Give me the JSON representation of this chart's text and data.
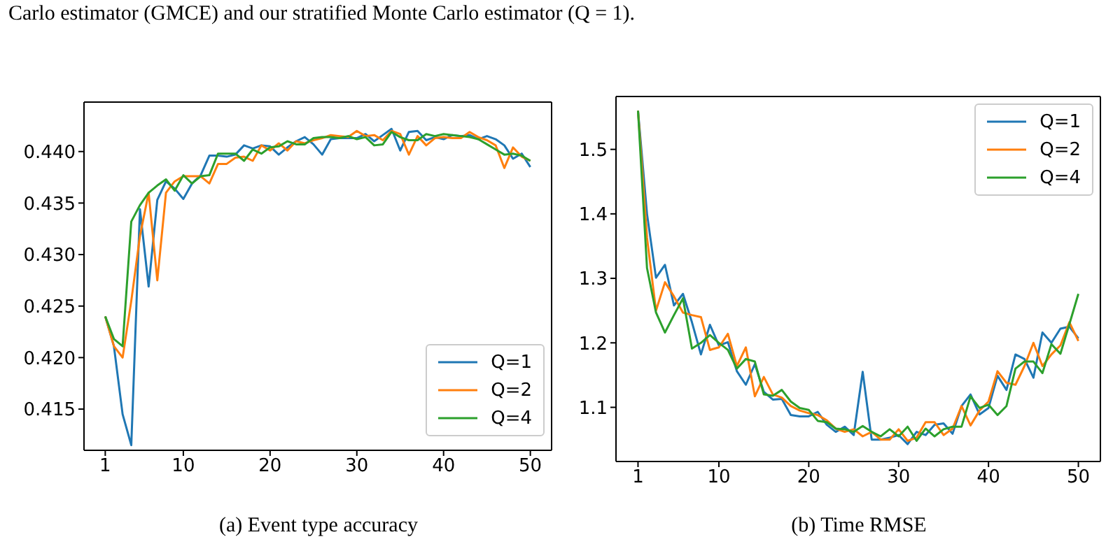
{
  "chart_data": [
    {
      "type": "line",
      "xlabel": "(a) Event type accuracy",
      "annotations": [
        "Carlo estimator (GMCE) and our stratified Monte Carlo estimator (Q = 1)."
      ],
      "x": [
        1,
        2,
        3,
        4,
        5,
        6,
        7,
        8,
        9,
        10,
        11,
        12,
        13,
        14,
        15,
        16,
        17,
        18,
        19,
        20,
        21,
        22,
        23,
        24,
        25,
        26,
        27,
        28,
        29,
        30,
        31,
        32,
        33,
        34,
        35,
        36,
        37,
        38,
        39,
        40,
        41,
        42,
        43,
        44,
        45,
        46,
        47,
        48,
        49,
        50
      ],
      "xlim": [
        -1.45,
        52.45
      ],
      "xticks": [
        1,
        10,
        20,
        30,
        40,
        50
      ],
      "ylim": [
        0.411,
        0.4448
      ],
      "yticks": [
        0.415,
        {
          "value": 0.42,
          "label": "0.420"
        },
        0.425,
        {
          "value": 0.43,
          "label": "0.430"
        },
        0.435,
        {
          "value": 0.44,
          "label": "0.440"
        }
      ],
      "grid": false,
      "legend": "bottom right",
      "marker": "none",
      "line_style": "solid",
      "series": [
        {
          "name": "Q=1",
          "color": "#1f77b4",
          "values": [
            0.424,
            0.4211,
            0.4145,
            0.4115,
            0.4344,
            0.4269,
            0.4353,
            0.4371,
            0.4364,
            0.4354,
            0.4369,
            0.4377,
            0.4396,
            0.4396,
            0.4395,
            0.4397,
            0.4406,
            0.4403,
            0.4406,
            0.4405,
            0.4397,
            0.4404,
            0.441,
            0.4414,
            0.4407,
            0.4397,
            0.4412,
            0.4413,
            0.4413,
            0.4413,
            0.4417,
            0.441,
            0.4416,
            0.4422,
            0.4401,
            0.4419,
            0.442,
            0.4411,
            0.4414,
            0.4412,
            0.4416,
            0.4415,
            0.4416,
            0.4412,
            0.4415,
            0.4412,
            0.4406,
            0.4393,
            0.4398,
            0.4385
          ]
        },
        {
          "name": "Q=2",
          "color": "#ff7f0e",
          "values": [
            0.424,
            0.4211,
            0.42,
            0.4255,
            0.4318,
            0.436,
            0.4275,
            0.436,
            0.4371,
            0.4376,
            0.4376,
            0.4376,
            0.4369,
            0.4388,
            0.4388,
            0.4394,
            0.4395,
            0.4391,
            0.4406,
            0.4401,
            0.4408,
            0.4401,
            0.441,
            0.4408,
            0.4411,
            0.4413,
            0.4416,
            0.4415,
            0.4414,
            0.442,
            0.4415,
            0.4416,
            0.4411,
            0.442,
            0.4417,
            0.4397,
            0.4415,
            0.4406,
            0.4413,
            0.4414,
            0.4413,
            0.4413,
            0.4419,
            0.4414,
            0.4411,
            0.4406,
            0.4384,
            0.4404,
            0.4395,
            0.4391
          ]
        },
        {
          "name": "Q=4",
          "color": "#2ca02c",
          "values": [
            0.424,
            0.4218,
            0.4211,
            0.4332,
            0.4348,
            0.436,
            0.4367,
            0.4373,
            0.4362,
            0.4377,
            0.4369,
            0.4376,
            0.4377,
            0.4398,
            0.4398,
            0.4398,
            0.4391,
            0.4402,
            0.4398,
            0.4404,
            0.4405,
            0.441,
            0.4407,
            0.4407,
            0.4413,
            0.4414,
            0.4414,
            0.4413,
            0.4415,
            0.4412,
            0.4414,
            0.4406,
            0.4407,
            0.4419,
            0.4414,
            0.4411,
            0.4411,
            0.4417,
            0.4415,
            0.4417,
            0.4416,
            0.4415,
            0.4414,
            0.4412,
            0.4407,
            0.4402,
            0.4397,
            0.4398,
            0.4396,
            0.4391
          ]
        }
      ]
    },
    {
      "type": "line",
      "xlabel": "(b) Time RMSE",
      "x": [
        1,
        2,
        3,
        4,
        5,
        6,
        7,
        8,
        9,
        10,
        11,
        12,
        13,
        14,
        15,
        16,
        17,
        18,
        19,
        20,
        21,
        22,
        23,
        24,
        25,
        26,
        27,
        28,
        29,
        30,
        31,
        32,
        33,
        34,
        35,
        36,
        37,
        38,
        39,
        40,
        41,
        42,
        43,
        44,
        45,
        46,
        47,
        48,
        49,
        50
      ],
      "xlim": [
        -1.45,
        52.45
      ],
      "xticks": [
        1,
        10,
        20,
        30,
        40,
        50
      ],
      "ylim": [
        1.016,
        1.582
      ],
      "yticks": [
        1.1,
        1.2,
        1.3,
        1.4,
        1.5
      ],
      "grid": false,
      "legend": "top right",
      "marker": "none",
      "line_style": "solid",
      "series": [
        {
          "name": "Q=1",
          "color": "#1f77b4",
          "values": [
            1.56,
            1.4,
            1.301,
            1.321,
            1.258,
            1.276,
            1.232,
            1.182,
            1.228,
            1.196,
            1.201,
            1.156,
            1.135,
            1.167,
            1.124,
            1.112,
            1.113,
            1.088,
            1.086,
            1.086,
            1.093,
            1.073,
            1.062,
            1.07,
            1.057,
            1.155,
            1.05,
            1.05,
            1.053,
            1.057,
            1.043,
            1.062,
            1.057,
            1.073,
            1.075,
            1.059,
            1.102,
            1.12,
            1.089,
            1.099,
            1.149,
            1.127,
            1.182,
            1.175,
            1.146,
            1.216,
            1.2,
            1.222,
            1.225,
            1.207
          ]
        },
        {
          "name": "Q=2",
          "color": "#ff7f0e",
          "values": [
            1.56,
            1.363,
            1.25,
            1.294,
            1.272,
            1.247,
            1.243,
            1.24,
            1.189,
            1.193,
            1.214,
            1.164,
            1.193,
            1.117,
            1.147,
            1.12,
            1.115,
            1.102,
            1.095,
            1.091,
            1.088,
            1.08,
            1.067,
            1.062,
            1.066,
            1.055,
            1.062,
            1.05,
            1.05,
            1.066,
            1.048,
            1.053,
            1.077,
            1.077,
            1.057,
            1.067,
            1.102,
            1.072,
            1.095,
            1.109,
            1.156,
            1.138,
            1.135,
            1.164,
            1.2,
            1.164,
            1.182,
            1.196,
            1.232,
            1.203
          ]
        },
        {
          "name": "Q=4",
          "color": "#2ca02c",
          "values": [
            1.56,
            1.316,
            1.247,
            1.216,
            1.243,
            1.269,
            1.191,
            1.2,
            1.212,
            1.2,
            1.189,
            1.16,
            1.175,
            1.171,
            1.12,
            1.118,
            1.127,
            1.109,
            1.099,
            1.096,
            1.079,
            1.077,
            1.067,
            1.066,
            1.062,
            1.071,
            1.062,
            1.055,
            1.066,
            1.055,
            1.07,
            1.048,
            1.067,
            1.055,
            1.066,
            1.07,
            1.07,
            1.117,
            1.099,
            1.104,
            1.088,
            1.102,
            1.16,
            1.171,
            1.171,
            1.153,
            1.198,
            1.183,
            1.229,
            1.276
          ]
        }
      ]
    }
  ]
}
